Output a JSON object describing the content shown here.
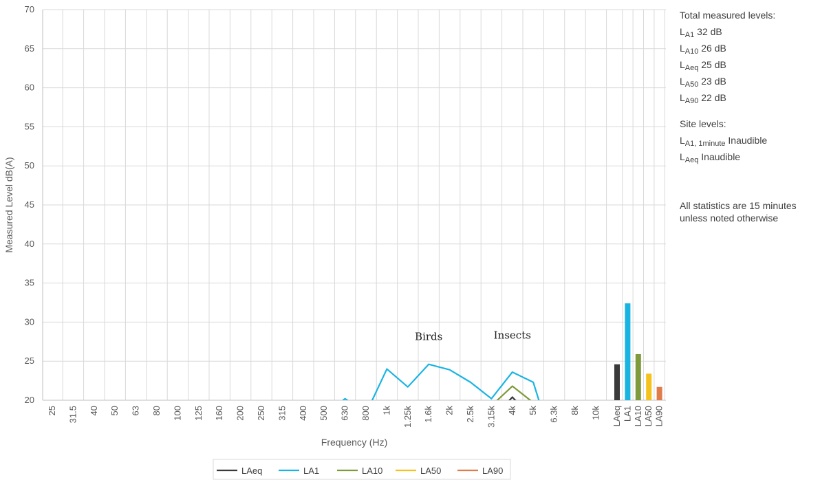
{
  "chart_data": {
    "type": "line",
    "y_label": "Measured Level dB(A)",
    "x_label": "Frequency (Hz)",
    "categories": [
      "25",
      "31.5",
      "40",
      "50",
      "63",
      "80",
      "100",
      "125",
      "160",
      "200",
      "250",
      "315",
      "400",
      "500",
      "630",
      "800",
      "1k",
      "1.25k",
      "1.6k",
      "2k",
      "2.5k",
      "3.15k",
      "4k",
      "5k",
      "6.3k",
      "8k",
      "10k"
    ],
    "series": [
      {
        "name": "LAeq",
        "color": "#3a3a3a",
        "values": [
          null,
          null,
          null,
          null,
          null,
          null,
          null,
          null,
          null,
          null,
          null,
          null,
          null,
          null,
          null,
          null,
          null,
          null,
          null,
          null,
          null,
          17.5,
          20.4,
          17.5,
          null,
          null,
          null
        ]
      },
      {
        "name": "LA1",
        "color": "#1ab4e3",
        "values": [
          null,
          null,
          null,
          null,
          null,
          null,
          null,
          null,
          null,
          null,
          null,
          null,
          null,
          18,
          20.2,
          18.3,
          24.0,
          21.7,
          24.6,
          23.9,
          22.3,
          20.2,
          23.6,
          22.3,
          13.7,
          null,
          null
        ]
      },
      {
        "name": "LA10",
        "color": "#7f9a3a",
        "values": [
          null,
          null,
          null,
          null,
          null,
          null,
          null,
          null,
          null,
          null,
          null,
          null,
          null,
          null,
          null,
          null,
          null,
          null,
          null,
          null,
          null,
          19.3,
          21.8,
          19.7,
          null,
          null,
          null
        ]
      },
      {
        "name": "LA50",
        "color": "#f5c21b",
        "values": [
          null,
          null,
          null,
          null,
          null,
          null,
          null,
          null,
          null,
          null,
          null,
          null,
          null,
          null,
          null,
          null,
          null,
          null,
          null,
          null,
          null,
          null,
          null,
          null,
          null,
          null,
          null
        ]
      },
      {
        "name": "LA90",
        "color": "#e07b4a",
        "values": [
          null,
          null,
          null,
          null,
          null,
          null,
          null,
          null,
          null,
          null,
          null,
          null,
          null,
          null,
          null,
          null,
          null,
          null,
          null,
          null,
          null,
          null,
          null,
          null,
          null,
          null,
          null
        ]
      }
    ],
    "totals": {
      "categories": [
        "LAeq",
        "LA1",
        "LA10",
        "LA50",
        "LA90"
      ],
      "values": [
        24.6,
        32.4,
        25.9,
        23.4,
        21.7
      ],
      "colors": [
        "#3a3a3a",
        "#1ab4e3",
        "#7f9a3a",
        "#f5c21b",
        "#e07b4a"
      ]
    },
    "ylim": [
      20,
      70
    ],
    "yticks": [
      20,
      25,
      30,
      35,
      40,
      45,
      50,
      55,
      60,
      65,
      70
    ],
    "grid": true,
    "annotations": [
      {
        "text": "Birds",
        "category": 18,
        "value": 27.7
      },
      {
        "text": "Insects",
        "category": 22,
        "value": 27.9
      }
    ]
  },
  "notes": {
    "total_title": "Total measured levels:",
    "totals": [
      {
        "symbol": "L",
        "sub": "A1",
        "text": "32 dB"
      },
      {
        "symbol": "L",
        "sub": "A10",
        "text": "26 dB"
      },
      {
        "symbol": "L",
        "sub": "Aeq",
        "text": "25 dB"
      },
      {
        "symbol": "L",
        "sub": "A50",
        "text": "23 dB"
      },
      {
        "symbol": "L",
        "sub": "A90",
        "text": "22 dB"
      }
    ],
    "site_title": "Site levels:",
    "site": [
      {
        "symbol": "L",
        "sub": "A1, 1minute",
        "text": "Inaudible"
      },
      {
        "symbol": "L",
        "sub": "Aeq",
        "text": "Inaudible"
      }
    ],
    "footnote": [
      "All statistics are 15 minutes",
      "unless noted otherwise"
    ]
  }
}
